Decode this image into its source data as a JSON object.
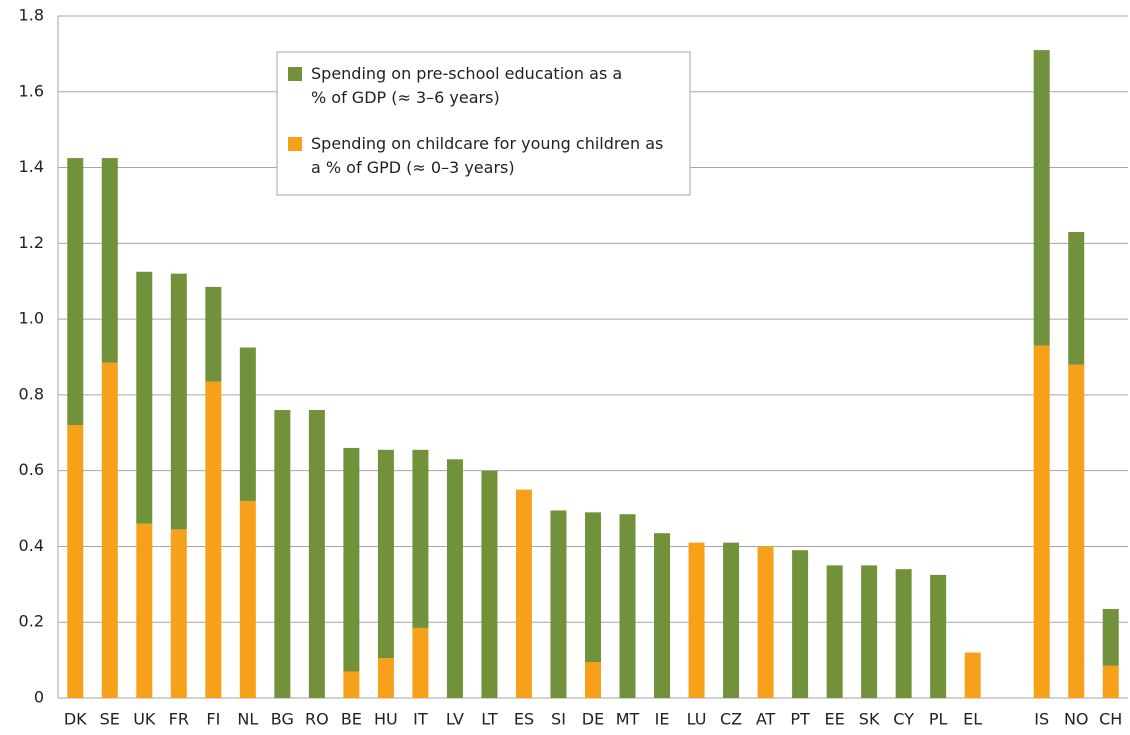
{
  "chart_data": {
    "type": "stacked_bar",
    "categories": [
      "DK",
      "SE",
      "UK",
      "FR",
      "FI",
      "NL",
      "BG",
      "RO",
      "BE",
      "HU",
      "IT",
      "LV",
      "LT",
      "ES",
      "SI",
      "DE",
      "MT",
      "IE",
      "LU",
      "CZ",
      "AT",
      "PT",
      "EE",
      "SK",
      "CY",
      "PL",
      "EL",
      null,
      "IS",
      "NO",
      "CH"
    ],
    "series": [
      {
        "name": "Spending on childcare for young children as a % of GPD  (≈ 0–3 years)",
        "color": "#f7a11a",
        "values": [
          0.72,
          0.885,
          0.46,
          0.445,
          0.835,
          0.52,
          0,
          0,
          0.07,
          0.105,
          0.185,
          0,
          0,
          0.55,
          0,
          0.095,
          0,
          0,
          0.41,
          0,
          0.4,
          0,
          0,
          0,
          0,
          0,
          0.12,
          null,
          0.93,
          0.88,
          0.085
        ]
      },
      {
        "name": "Spending on pre-school education as a % of GDP (≈ 3–6 years)",
        "color": "#71913a",
        "values": [
          0.705,
          0.54,
          0.665,
          0.675,
          0.25,
          0.405,
          0.76,
          0.76,
          0.59,
          0.55,
          0.47,
          0.63,
          0.6,
          0,
          0.495,
          0.395,
          0.485,
          0.435,
          0,
          0.41,
          0,
          0.39,
          0.35,
          0.35,
          0.34,
          0.325,
          0,
          null,
          0.78,
          0.35,
          0.15
        ]
      }
    ],
    "ylim": [
      0,
      1.8
    ],
    "yticks": [
      0,
      0.2,
      0.4,
      0.6,
      0.8,
      {
        "value": 1,
        "label": "1.0"
      },
      1.2,
      1.4,
      1.6,
      1.8
    ],
    "grid": true
  }
}
